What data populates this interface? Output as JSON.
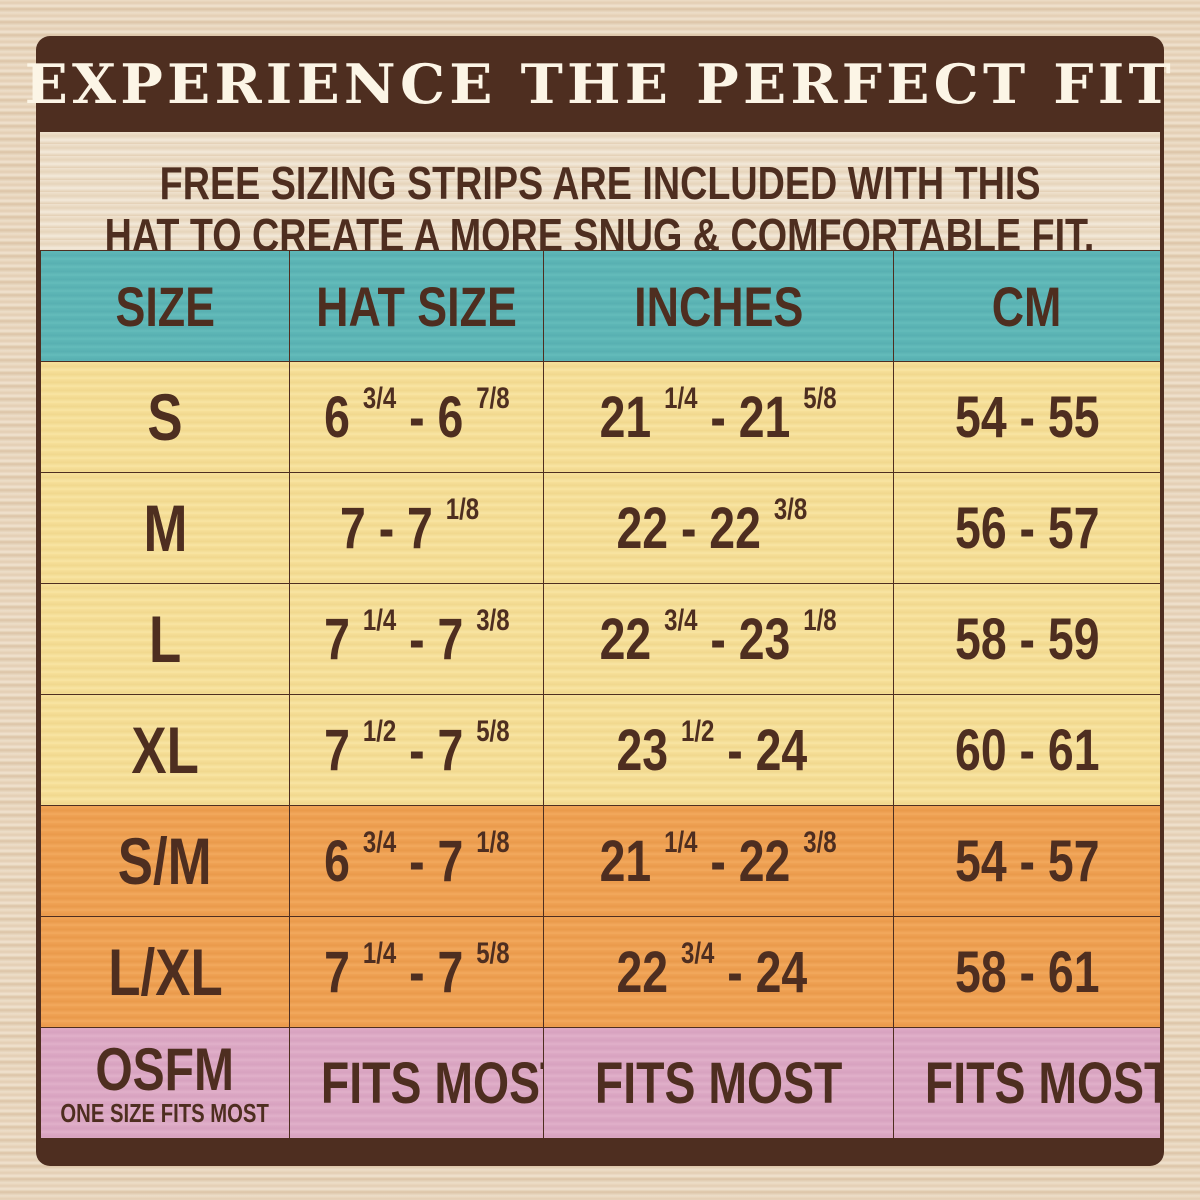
{
  "title": "EXPERIENCE THE PERFECT FIT",
  "subtitle": [
    "FREE SIZING STRIPS ARE INCLUDED WITH THIS",
    "HAT TO CREATE A MORE SNUG & COMFORTABLE FIT."
  ],
  "colors": {
    "frame": "#4e2e20",
    "header_row": "#5fb8b8",
    "standard_rows": "#f7e19c",
    "combo_rows": "#f0a457",
    "osfm_row": "#deabc6"
  },
  "columns": [
    "SIZE",
    "HAT SIZE",
    "INCHES",
    "CM"
  ],
  "rows": [
    {
      "size": "S",
      "hat": [
        "6",
        "3/4",
        " - 6",
        "7/8"
      ],
      "inches": [
        "21",
        "1/4",
        " - 21",
        "5/8"
      ],
      "cm": "54 - 55"
    },
    {
      "size": "M",
      "hat": [
        "7 - 7",
        "1/8",
        "",
        ""
      ],
      "inches": [
        "22 - 22",
        "3/8",
        "",
        ""
      ],
      "cm": "56 - 57"
    },
    {
      "size": "L",
      "hat": [
        "7",
        "1/4",
        " - 7",
        "3/8"
      ],
      "inches": [
        "22",
        "3/4",
        " - 23",
        "1/8"
      ],
      "cm": "58 - 59"
    },
    {
      "size": "XL",
      "hat": [
        "7",
        "1/2",
        " - 7",
        "5/8"
      ],
      "inches": [
        "23",
        "1/2",
        " - 24",
        ""
      ],
      "cm": "60 - 61"
    },
    {
      "size": "S/M",
      "hat": [
        "6",
        "3/4",
        " - 7",
        "1/8"
      ],
      "inches": [
        "21",
        "1/4",
        " - 22",
        "3/8"
      ],
      "cm": "54 - 57"
    },
    {
      "size": "L/XL",
      "hat": [
        "7",
        "1/4",
        " - 7",
        "5/8"
      ],
      "inches": [
        "22",
        "3/4",
        " - 24",
        ""
      ],
      "cm": "58 - 61"
    }
  ],
  "osfm": {
    "size": "OSFM",
    "size_note": "ONE SIZE FITS MOST",
    "hat": "FITS MOST",
    "inches": "FITS MOST",
    "cm": "FITS MOST"
  }
}
